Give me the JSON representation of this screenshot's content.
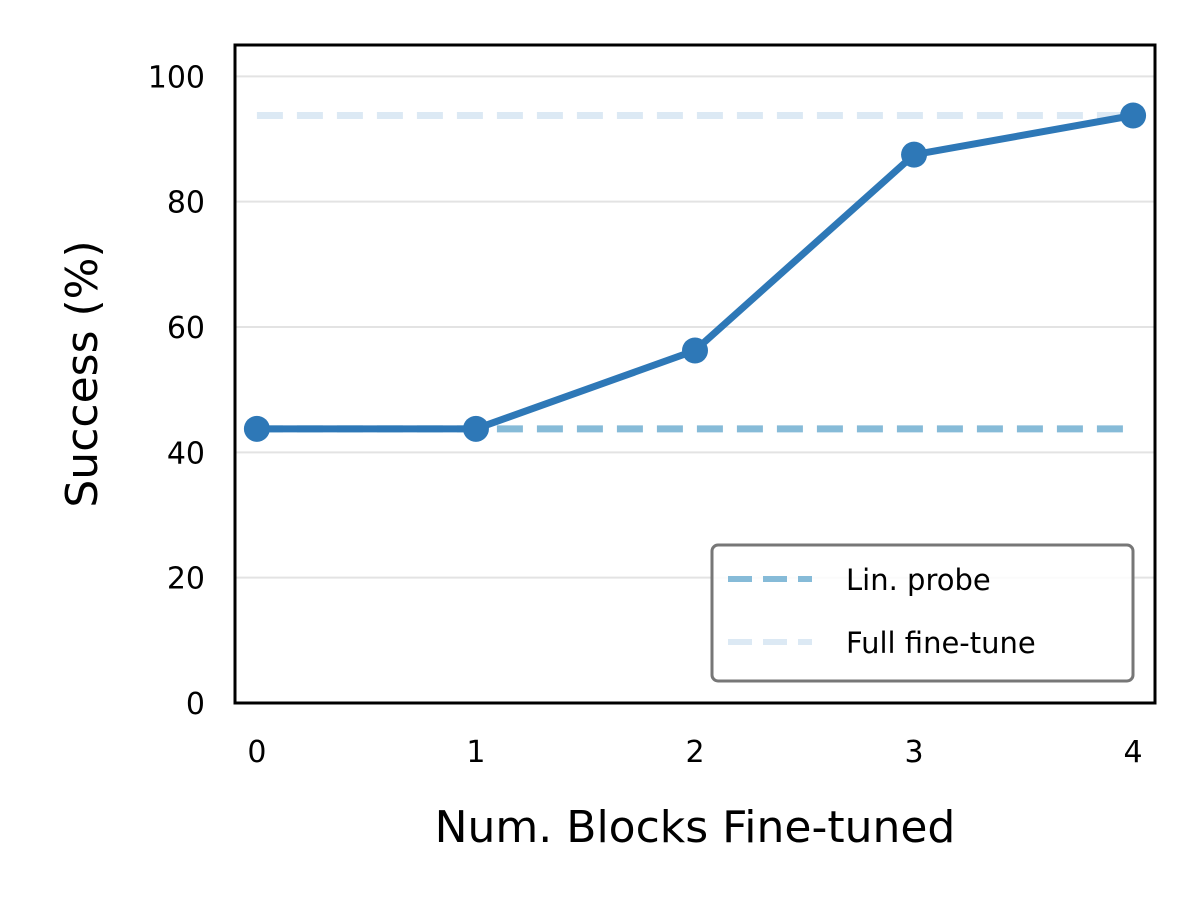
{
  "chart_data": {
    "type": "line",
    "xlabel": "Num. Blocks Fine-tuned",
    "ylabel": "Success (%)",
    "xlim": [
      -0.1,
      4.1
    ],
    "ylim": [
      0,
      105
    ],
    "x_ticks": [
      "0",
      "1",
      "2",
      "3",
      "4"
    ],
    "y_ticks": [
      "0",
      "20",
      "40",
      "60",
      "80",
      "100"
    ],
    "grid": "horizontal",
    "series": [
      {
        "x": [
          0,
          1,
          2,
          3,
          4
        ],
        "values": [
          43.75,
          43.75,
          56.25,
          87.5,
          93.75
        ],
        "color": "#2e78b7",
        "style": "solid-with-markers"
      }
    ],
    "reference_lines": [
      {
        "name": "Lin. probe",
        "y": 43.75,
        "x_range": [
          0,
          4
        ],
        "color": "#86bbd8",
        "style": "dashed"
      },
      {
        "name": "Full fine-tune",
        "y": 93.75,
        "x_range": [
          0,
          4
        ],
        "color": "#dce9f4",
        "style": "dashed"
      }
    ],
    "legend": {
      "position": "bottom-right",
      "entries": [
        "Lin. probe",
        "Full fine-tune"
      ]
    }
  }
}
